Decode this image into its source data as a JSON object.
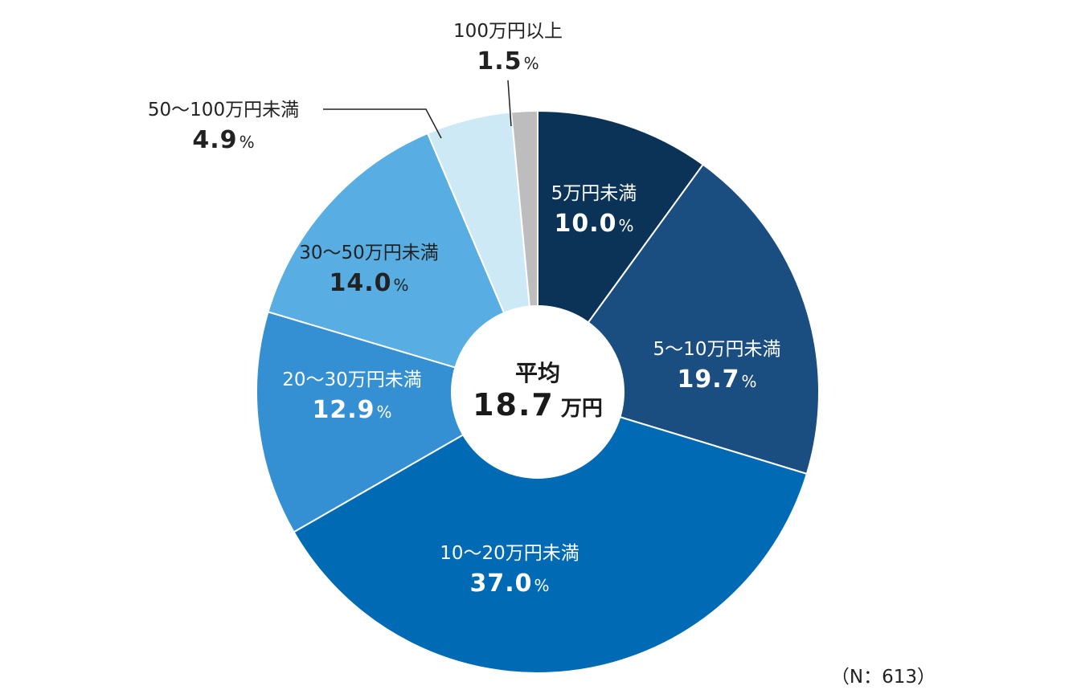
{
  "chart_data": {
    "type": "pie",
    "categories": [
      "5万円未満",
      "5〜10万円未満",
      "10〜20万円未満",
      "20〜30万円未満",
      "30〜50万円未満",
      "50〜100万円未満",
      "100万円以上"
    ],
    "values": [
      10.0,
      19.7,
      37.0,
      12.9,
      14.0,
      4.9,
      1.5
    ],
    "value_labels": [
      "10.0",
      "19.7",
      "37.0",
      "12.9",
      "14.0",
      "4.9",
      "1.5"
    ],
    "unit": "%",
    "colors": [
      "#0b3358",
      "#1a4d80",
      "#006bb4",
      "#3490d3",
      "#58aee2",
      "#cde9f6",
      "#bdbdbd"
    ],
    "label_colors": [
      "#ffffff",
      "#ffffff",
      "#ffffff",
      "#ffffff",
      "#222222",
      "#222222",
      "#222222"
    ],
    "center": {
      "title": "平均",
      "value": "18.7",
      "unit": "万円"
    },
    "note": "（N：613）"
  }
}
